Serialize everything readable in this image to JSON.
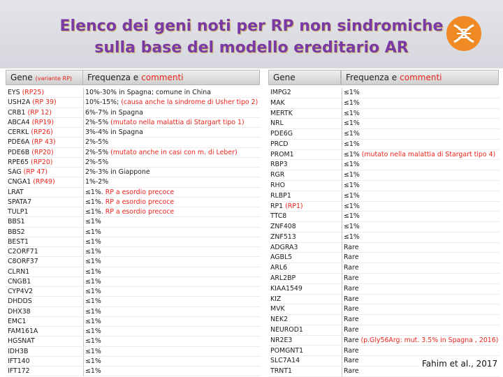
{
  "header": {
    "title": [
      "Elenco dei geni noti per RP non sindromiche",
      "sulla base del modello ereditario AR"
    ]
  },
  "tables": [
    {
      "columns": [
        {
          "text": "Gene",
          "note": "(variante RP)"
        },
        {
          "text": "Frequenza e",
          "note": "commenti"
        }
      ],
      "rows": [
        {
          "gene": "EYS",
          "variant": "(RP25)",
          "freq": "10%-30% in Spagna; comune in China"
        },
        {
          "gene": "USH2A",
          "variant": "(RP 39)",
          "freq": "10%-15%;",
          "comment": "(causa anche la sindrome di Usher tipo 2)"
        },
        {
          "gene": "CRB1",
          "variant": "(RP 12)",
          "freq": "6%-7% in Spagna"
        },
        {
          "gene": "ABCA4",
          "variant": "(RP19)",
          "freq": "2%-5%",
          "comment": "(mutato nella malattia di Stargart tipo 1)"
        },
        {
          "gene": "CERKL",
          "variant": "(RP26)",
          "freq": "3%-4% in Spagna"
        },
        {
          "gene": "PDE6A",
          "variant": "(RP 43)",
          "freq": "2%-5%"
        },
        {
          "gene": "PDE6B",
          "variant": "(RP20)",
          "freq": "2%-5%",
          "comment": "(mutato anche in casi con m. di Leber)"
        },
        {
          "gene": "RPE65",
          "variant": "(RP20)",
          "freq": "2%-5%"
        },
        {
          "gene": "SAG",
          "variant": "(RP 47)",
          "freq": "2%-3% in Giappone"
        },
        {
          "gene": "CNGA1",
          "variant": "(RP49)",
          "freq": "1%-2%"
        },
        {
          "gene": "LRAT",
          "freq": "≤1%.",
          "comment": "RP a esordio precoce"
        },
        {
          "gene": "SPATA7",
          "freq": "≤1%.",
          "comment": "RP a esordio precoce"
        },
        {
          "gene": "TULP1",
          "freq": "≤1%.",
          "comment": "RP a esordio precoce"
        },
        {
          "gene": "BBS1",
          "freq": "≤1%"
        },
        {
          "gene": "BBS2",
          "freq": "≤1%"
        },
        {
          "gene": "BEST1",
          "freq": "≤1%"
        },
        {
          "gene": "C2ORF71",
          "freq": "≤1%"
        },
        {
          "gene": "C8ORF37",
          "freq": "≤1%"
        },
        {
          "gene": "CLRN1",
          "freq": "≤1%"
        },
        {
          "gene": "CNGB1",
          "freq": "≤1%"
        },
        {
          "gene": "CYP4V2",
          "freq": "≤1%"
        },
        {
          "gene": "DHDDS",
          "freq": "≤1%"
        },
        {
          "gene": "DHX38",
          "freq": "≤1%"
        },
        {
          "gene": "EMC1",
          "freq": "≤1%"
        },
        {
          "gene": "FAM161A",
          "freq": "≤1%"
        },
        {
          "gene": "HGSNAT",
          "freq": "≤1%"
        },
        {
          "gene": "IDH3B",
          "freq": "≤1%"
        },
        {
          "gene": "IFT140",
          "freq": "≤1%"
        },
        {
          "gene": "IFT172",
          "freq": "≤1%"
        }
      ]
    },
    {
      "columns": [
        {
          "text": "Gene"
        },
        {
          "text": "Frequenza e",
          "note": "commenti"
        }
      ],
      "rows": [
        {
          "gene": "IMPG2",
          "freq": "≤1%"
        },
        {
          "gene": "MAK",
          "freq": "≤1%"
        },
        {
          "gene": "MERTK",
          "freq": "≤1%"
        },
        {
          "gene": "NRL",
          "freq": "≤1%"
        },
        {
          "gene": "PDE6G",
          "freq": "≤1%"
        },
        {
          "gene": "PRCD",
          "freq": "≤1%"
        },
        {
          "gene": "PROM1",
          "freq": "≤1%",
          "comment": "(mutato nella malattia di Stargart tipo 4)"
        },
        {
          "gene": "RBP3",
          "freq": "≤1%"
        },
        {
          "gene": "RGR",
          "freq": "≤1%"
        },
        {
          "gene": "RHO",
          "freq": "≤1%"
        },
        {
          "gene": "RLBP1",
          "freq": "≤1%"
        },
        {
          "gene": "RP1",
          "variant": "(RP1)",
          "freq": "≤1%"
        },
        {
          "gene": "TTC8",
          "freq": "≤1%"
        },
        {
          "gene": "ZNF408",
          "freq": "≤1%"
        },
        {
          "gene": "ZNF513",
          "freq": "≤1%"
        },
        {
          "gene": "ADGRA3",
          "freq": "Rare"
        },
        {
          "gene": "AGBL5",
          "freq": "Rare"
        },
        {
          "gene": "ARL6",
          "freq": "Rare"
        },
        {
          "gene": "ARL2BP",
          "freq": "Rare"
        },
        {
          "gene": "KIAA1549",
          "freq": "Rare"
        },
        {
          "gene": "KIZ",
          "freq": "Rare"
        },
        {
          "gene": "MVK",
          "freq": "Rare"
        },
        {
          "gene": "NEK2",
          "freq": "Rare"
        },
        {
          "gene": "NEUROD1",
          "freq": "Rare"
        },
        {
          "gene": "NR2E3",
          "freq": "Rare",
          "comment": "(p.Gly56Arg: mut. 3.5% in Spagna , 2016)"
        },
        {
          "gene": "POMGNT1",
          "freq": "Rare"
        },
        {
          "gene": "SLC7A14",
          "freq": "Rare"
        },
        {
          "gene": "TRNT1",
          "freq": "Rare"
        }
      ]
    }
  ],
  "citation": "Fahim et al., 2017"
}
